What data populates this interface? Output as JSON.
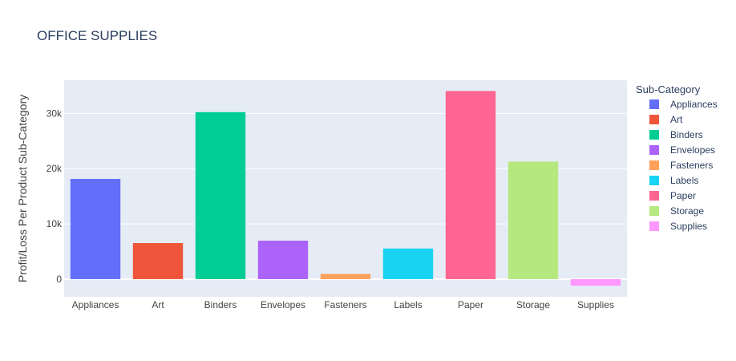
{
  "chart_data": {
    "type": "bar",
    "title": "OFFICE SUPPLIES",
    "xlabel": "",
    "ylabel": "Profit/Loss Per Product Sub-Category",
    "legend_title": "Sub-Category",
    "legend_position": "right",
    "grid": true,
    "ylim": [
      -3200,
      36000
    ],
    "yticks": [
      0,
      10000,
      20000,
      30000
    ],
    "ytick_labels": [
      "0",
      "10k",
      "20k",
      "30k"
    ],
    "categories": [
      "Appliances",
      "Art",
      "Binders",
      "Envelopes",
      "Fasteners",
      "Labels",
      "Paper",
      "Storage",
      "Supplies"
    ],
    "values": [
      18138,
      6528,
      30222,
      6964,
      950,
      5546,
      34054,
      21279,
      -1189
    ],
    "colors": [
      "#636efa",
      "#EF553B",
      "#00cc96",
      "#ab63fa",
      "#FFA15A",
      "#19d3f3",
      "#FF6692",
      "#B6E880",
      "#FF97FF"
    ]
  }
}
